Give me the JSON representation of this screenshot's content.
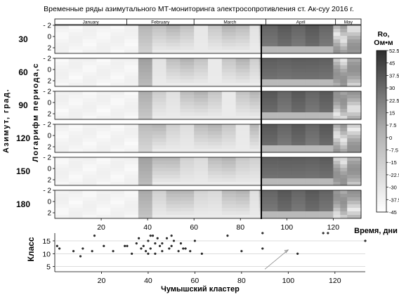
{
  "title": "Временные ряды азимутального МТ-мониторинга электросопротивления ст. Ак-суу  2016 г.",
  "ylabel_outer": "Азимут, град.",
  "ylabel_inner": "Логарифм периода,с",
  "xlabel_top": "Время, дни",
  "xlabel_bottom": "Чумышский кластер",
  "months": [
    "January",
    "February",
    "March",
    "April",
    "May"
  ],
  "colorbar": {
    "title_line1": "Ro,",
    "title_line2": "Ом•м",
    "ticks": [
      "52.5",
      "45",
      "37.5",
      "30",
      "22.5",
      "15",
      "7.5",
      "0",
      "-7.5",
      "-15",
      "-22.5",
      "-30",
      "-37.5",
      "-45"
    ],
    "range": [
      -45,
      52.5
    ]
  },
  "chart_data": [
    {
      "type": "heatmap",
      "title": "Временные ряды азимутального МТ-мониторинга электросопротивления ст. Ак-суу  2016 г.",
      "xlabel": "Время, дни",
      "ylabel": "Азимут, град. / Логарифм периода,с",
      "xlim": [
        0,
        132
      ],
      "xticks": [
        20,
        40,
        60,
        80,
        100,
        120
      ],
      "ylim": [
        -2,
        3
      ],
      "yticks": [
        -2,
        0,
        2
      ],
      "azimuths": [
        "30",
        "60",
        "90",
        "120",
        "150",
        "180"
      ],
      "event_line_day": 89,
      "colorbar_range": [
        -45,
        52.5
      ]
    },
    {
      "type": "scatter",
      "xlabel": "Чумышский кластер",
      "ylabel": "Класс",
      "xlim": [
        0,
        133
      ],
      "ylim": [
        3,
        18
      ],
      "xticks": [
        20,
        40,
        60,
        80,
        100,
        120
      ],
      "yticks": [
        5,
        10,
        15
      ],
      "points": [
        [
          1,
          13
        ],
        [
          2,
          12
        ],
        [
          8,
          11
        ],
        [
          11,
          9
        ],
        [
          12,
          12
        ],
        [
          16,
          11
        ],
        [
          17,
          17
        ],
        [
          21,
          13
        ],
        [
          25,
          11
        ],
        [
          30,
          13
        ],
        [
          31,
          13
        ],
        [
          33,
          10
        ],
        [
          35,
          14
        ],
        [
          36,
          16
        ],
        [
          37,
          12
        ],
        [
          38,
          13
        ],
        [
          39,
          11
        ],
        [
          40,
          15
        ],
        [
          40,
          10
        ],
        [
          41,
          17
        ],
        [
          41,
          12
        ],
        [
          42,
          17
        ],
        [
          43,
          14
        ],
        [
          43,
          10
        ],
        [
          44,
          16
        ],
        [
          45,
          13
        ],
        [
          46,
          14
        ],
        [
          46,
          11
        ],
        [
          48,
          16
        ],
        [
          49,
          12
        ],
        [
          50,
          17
        ],
        [
          50,
          13
        ],
        [
          51,
          15
        ],
        [
          53,
          11
        ],
        [
          54,
          14
        ],
        [
          55,
          12
        ],
        [
          56,
          12
        ],
        [
          58,
          11
        ],
        [
          60,
          15
        ],
        [
          63,
          10
        ],
        [
          74,
          17
        ],
        [
          80,
          11
        ],
        [
          89,
          18
        ],
        [
          89,
          12
        ],
        [
          104,
          10
        ],
        [
          115,
          18
        ],
        [
          117,
          18
        ],
        [
          133,
          15
        ]
      ]
    }
  ]
}
